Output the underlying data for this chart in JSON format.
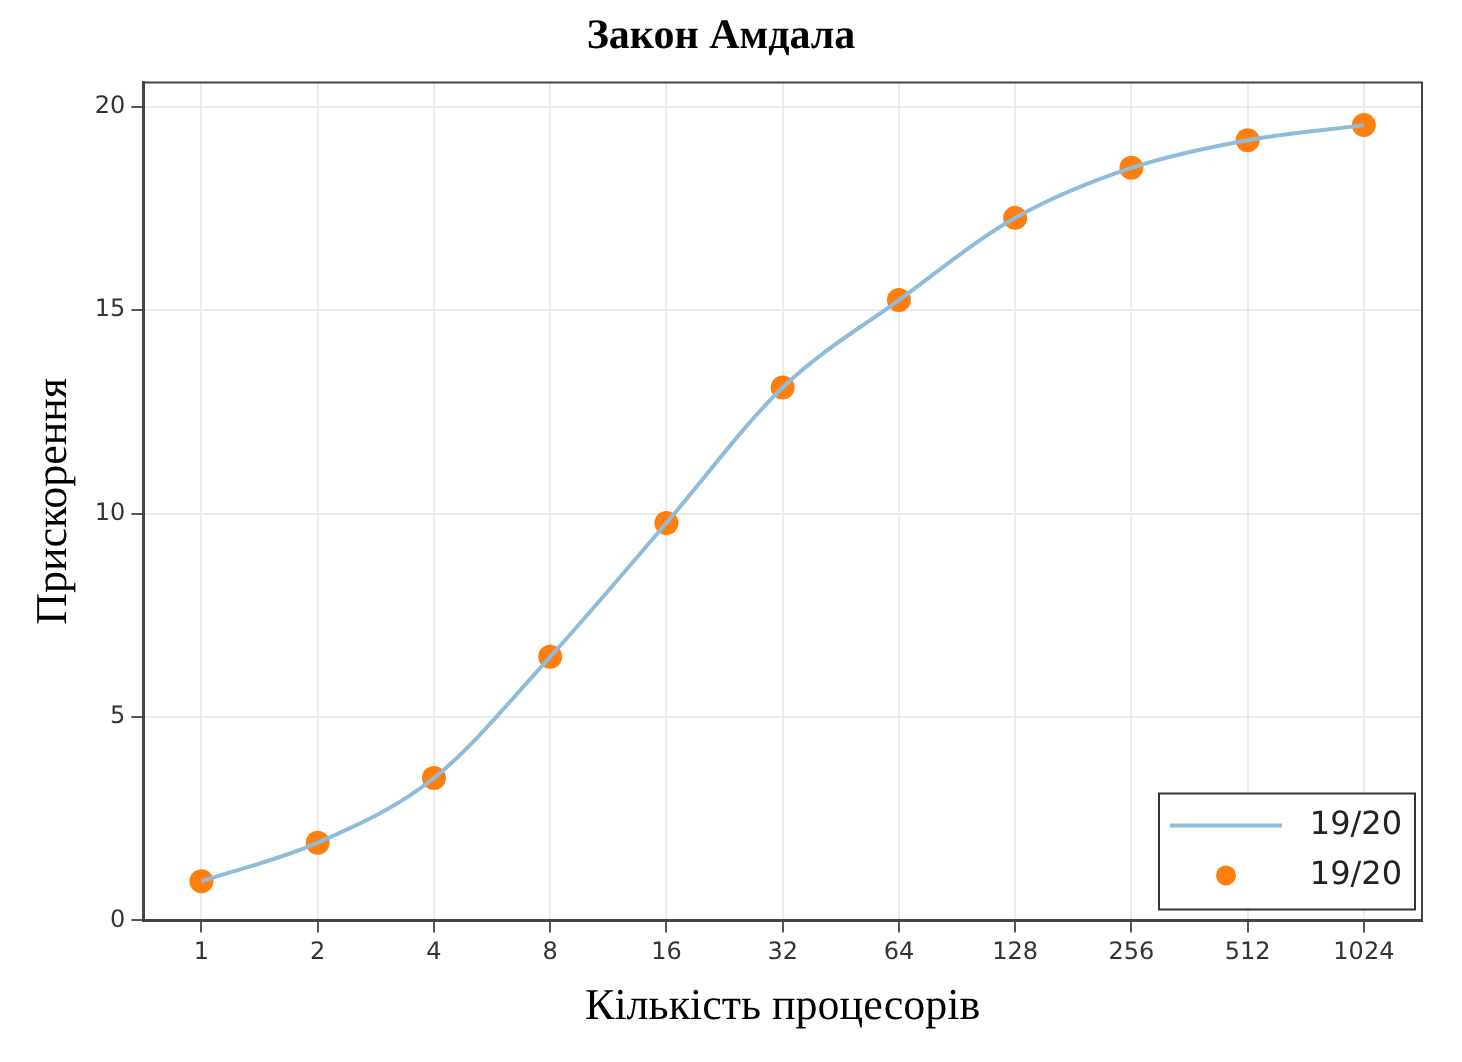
{
  "chart_data": {
    "type": "line",
    "title": "Закон Амдала",
    "xlabel": "Кількість процесорів",
    "ylabel": "Прискорення",
    "categories": [
      "1",
      "2",
      "4",
      "8",
      "16",
      "32",
      "64",
      "128",
      "256",
      "512",
      "1024"
    ],
    "series": [
      {
        "name": "19/20",
        "color": "#8fbcdb",
        "marker": "none",
        "values": [
          0.96,
          1.91,
          3.5,
          6.48,
          9.77,
          13.1,
          15.25,
          17.27,
          18.5,
          19.18,
          19.55
        ]
      },
      {
        "name": "19/20",
        "type": "scatter",
        "color": "#ff7f0e",
        "marker": "circle",
        "values": [
          0.96,
          1.91,
          3.5,
          6.48,
          9.77,
          13.1,
          15.25,
          17.27,
          18.5,
          19.18,
          19.55
        ]
      }
    ],
    "ylim": [
      0,
      20.6
    ],
    "yticks": [
      0,
      5,
      10,
      15,
      20
    ],
    "grid": true,
    "legend": "bottom right"
  }
}
